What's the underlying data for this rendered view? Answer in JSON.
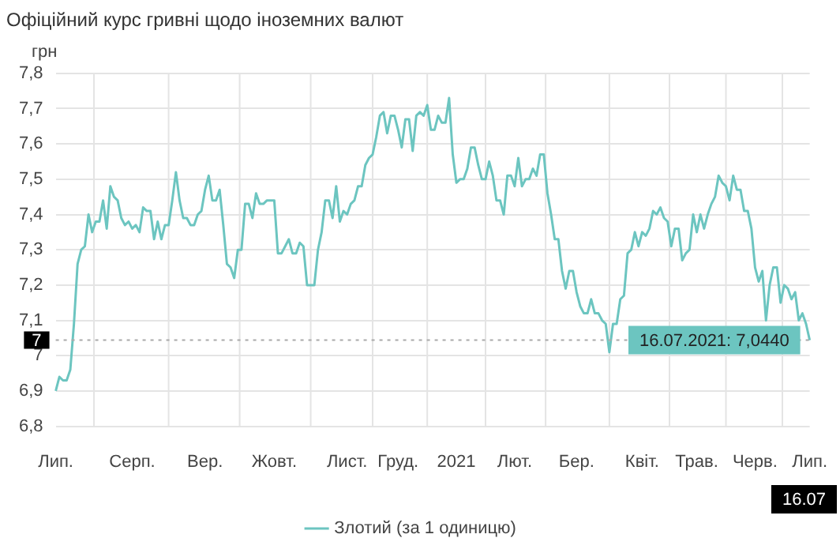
{
  "chart_data": {
    "type": "line",
    "title": "Офіційний курс гривні щодо іноземних валют",
    "ylabel": "грн",
    "categories": [
      "Лип.",
      null,
      null,
      null,
      null,
      null,
      null,
      null,
      null,
      null,
      null,
      null,
      null,
      null,
      null,
      null,
      null,
      null,
      null,
      null,
      null,
      "Серп.",
      null,
      null,
      null,
      null,
      null,
      null,
      null,
      null,
      null,
      null,
      null,
      null,
      null,
      null,
      null,
      null,
      null,
      null,
      null,
      "Вер.",
      null,
      null,
      null,
      null,
      null,
      null,
      null,
      null,
      null,
      null,
      null,
      null,
      null,
      null,
      null,
      null,
      null,
      null,
      "Жовт.",
      null,
      null,
      null,
      null,
      null,
      null,
      null,
      null,
      null,
      null,
      null,
      null,
      null,
      null,
      null,
      null,
      null,
      null,
      null,
      "Лист.",
      null,
      null,
      null,
      null,
      null,
      null,
      null,
      null,
      null,
      null,
      null,
      null,
      null,
      "Груд.",
      null,
      null,
      null,
      null,
      null,
      null,
      null,
      null,
      null,
      null,
      null,
      null,
      null,
      null,
      null,
      "2021",
      null,
      null,
      null,
      null,
      null,
      null,
      null,
      null,
      null,
      null,
      null,
      null,
      null,
      null,
      null,
      "Лют.",
      null,
      null,
      null,
      null,
      null,
      null,
      null,
      null,
      null,
      null,
      null,
      null,
      null,
      null,
      null,
      null,
      "Бер.",
      null,
      null,
      null,
      null,
      null,
      null,
      null,
      null,
      null,
      null,
      null,
      null,
      null,
      null,
      null,
      null,
      null,
      "Квіт.",
      null,
      null,
      null,
      null,
      null,
      null,
      null,
      null,
      null,
      null,
      null,
      null,
      null,
      null,
      "Трав.",
      null,
      null,
      null,
      null,
      null,
      null,
      null,
      null,
      null,
      null,
      null,
      null,
      null,
      null,
      null,
      "Черв.",
      null,
      null,
      null,
      null,
      null,
      null,
      null,
      null,
      null,
      null,
      null,
      null,
      null,
      null,
      "Лип."
    ],
    "series": [
      {
        "name": "Злотий (за 1 одиницю)",
        "color": "#6cc5c0",
        "values": [
          6.9,
          6.94,
          6.93,
          6.93,
          6.96,
          7.09,
          7.26,
          7.3,
          7.31,
          7.4,
          7.35,
          7.38,
          7.38,
          7.44,
          7.36,
          7.48,
          7.45,
          7.44,
          7.39,
          7.37,
          7.38,
          7.36,
          7.37,
          7.35,
          7.42,
          7.41,
          7.41,
          7.33,
          7.38,
          7.33,
          7.37,
          7.37,
          7.44,
          7.52,
          7.44,
          7.39,
          7.39,
          7.37,
          7.37,
          7.4,
          7.41,
          7.47,
          7.51,
          7.44,
          7.44,
          7.47,
          7.37,
          7.26,
          7.25,
          7.22,
          7.3,
          7.3,
          7.43,
          7.43,
          7.39,
          7.46,
          7.43,
          7.43,
          7.44,
          7.44,
          7.44,
          7.29,
          7.29,
          7.31,
          7.33,
          7.29,
          7.29,
          7.32,
          7.31,
          7.2,
          7.2,
          7.2,
          7.3,
          7.35,
          7.44,
          7.44,
          7.39,
          7.48,
          7.38,
          7.41,
          7.4,
          7.43,
          7.44,
          7.48,
          7.48,
          7.54,
          7.56,
          7.57,
          7.62,
          7.68,
          7.69,
          7.63,
          7.68,
          7.68,
          7.64,
          7.59,
          7.67,
          7.67,
          7.58,
          7.68,
          7.69,
          7.68,
          7.71,
          7.64,
          7.64,
          7.68,
          7.66,
          7.66,
          7.73,
          7.57,
          7.49,
          7.5,
          7.5,
          7.53,
          7.59,
          7.59,
          7.54,
          7.5,
          7.5,
          7.55,
          7.51,
          7.44,
          7.44,
          7.4,
          7.51,
          7.51,
          7.48,
          7.56,
          7.48,
          7.5,
          7.5,
          7.53,
          7.51,
          7.57,
          7.57,
          7.46,
          7.4,
          7.33,
          7.33,
          7.24,
          7.19,
          7.24,
          7.24,
          7.18,
          7.14,
          7.12,
          7.12,
          7.16,
          7.12,
          7.12,
          7.1,
          7.09,
          7.01,
          7.09,
          7.09,
          7.16,
          7.17,
          7.29,
          7.3,
          7.35,
          7.31,
          7.35,
          7.34,
          7.36,
          7.41,
          7.4,
          7.42,
          7.39,
          7.38,
          7.31,
          7.36,
          7.36,
          7.27,
          7.29,
          7.3,
          7.4,
          7.35,
          7.4,
          7.36,
          7.4,
          7.43,
          7.45,
          7.51,
          7.49,
          7.48,
          7.44,
          7.51,
          7.47,
          7.47,
          7.41,
          7.41,
          7.36,
          7.25,
          7.21,
          7.24,
          7.1,
          7.2,
          7.25,
          7.25,
          7.15,
          7.2,
          7.19,
          7.16,
          7.18,
          7.1,
          7.12,
          7.09,
          7.044
        ]
      }
    ],
    "ylim": [
      6.8,
      7.8
    ],
    "yticks": [
      {
        "value": 6.8,
        "label": "6,8"
      },
      {
        "value": 6.9,
        "label": "6,9"
      },
      {
        "value": 7,
        "label": "7"
      },
      {
        "value": 7.1,
        "label": "7,1"
      },
      {
        "value": 7.2,
        "label": "7,2"
      },
      {
        "value": 7.3,
        "label": "7,3"
      },
      {
        "value": 7.4,
        "label": "7,4"
      },
      {
        "value": 7.5,
        "label": "7,5"
      },
      {
        "value": 7.6,
        "label": "7,6"
      },
      {
        "value": 7.7,
        "label": "7,7"
      },
      {
        "value": 7.8,
        "label": "7,8"
      }
    ],
    "grid": true,
    "legend": "bottom",
    "marker": "none",
    "line_style": "solid",
    "ref_lines": [
      {
        "axis": "y",
        "value": 7.044,
        "label": "7",
        "line_style": "dotted",
        "color": "#aaaaaa"
      }
    ],
    "annotations": [
      {
        "text": "16.07.2021: 7,0440",
        "y": 7.044
      },
      "16.07"
    ]
  }
}
